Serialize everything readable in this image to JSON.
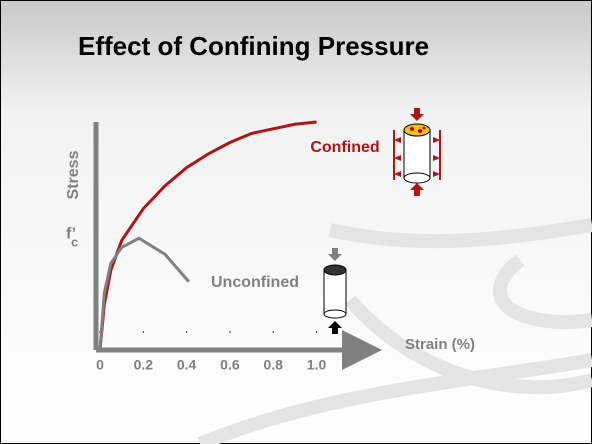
{
  "chart_data": {
    "type": "line",
    "title": "Effect of Confining Pressure",
    "xlabel": "Strain (%)",
    "ylabel": "Stress",
    "annotation": {
      "text": "f’",
      "subscript": "c",
      "y": 0.49
    },
    "xlim": [
      0,
      1.27
    ],
    "ylim": [
      0,
      1
    ],
    "xticks": [
      0,
      0.2,
      0.4,
      0.6,
      0.8,
      {
        "value": 1,
        "label": "1.0"
      }
    ],
    "series": [
      {
        "name": "Confined",
        "color": "#b01414",
        "x": [
          0,
          0.02,
          0.05,
          0.1,
          0.2,
          0.3,
          0.4,
          0.5,
          0.6,
          0.7,
          0.8,
          0.9,
          1.0
        ],
        "values": [
          0,
          0.2,
          0.35,
          0.48,
          0.62,
          0.72,
          0.8,
          0.86,
          0.91,
          0.95,
          0.97,
          0.99,
          1.0
        ]
      },
      {
        "name": "Unconfined",
        "color": "#808080",
        "x": [
          0,
          0.02,
          0.05,
          0.1,
          0.18,
          0.3,
          0.41
        ],
        "values": [
          0,
          0.25,
          0.38,
          0.45,
          0.49,
          0.42,
          0.3
        ]
      }
    ]
  }
}
